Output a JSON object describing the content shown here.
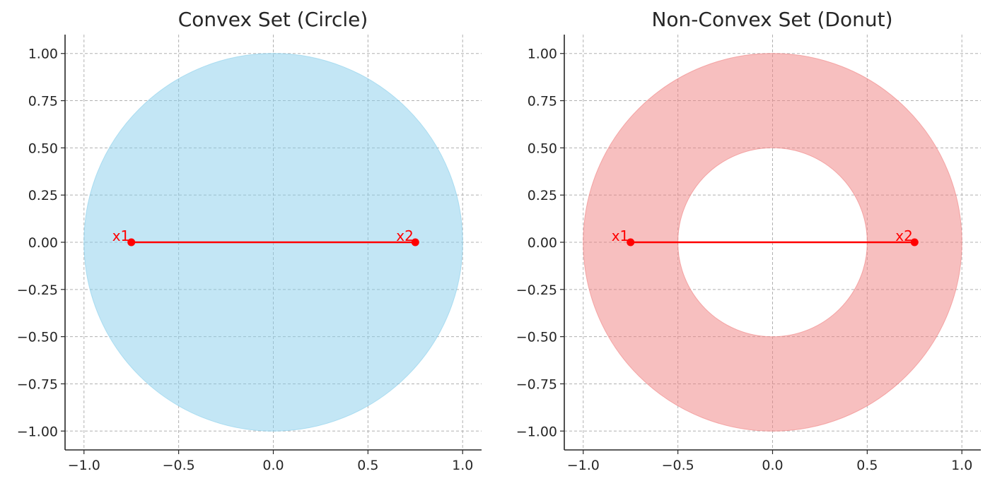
{
  "chart_data": [
    {
      "type": "area",
      "title": "Convex Set (Circle)",
      "shape": "circle",
      "outer_radius": 1.0,
      "inner_radius": 0,
      "center": [
        0,
        0
      ],
      "fill_color": "#87ceeb",
      "fill_opacity": 0.5,
      "xlim": [
        -1.1,
        1.1
      ],
      "ylim": [
        -1.1,
        1.1
      ],
      "x_ticks": [
        -1.0,
        -0.5,
        0.0,
        0.5,
        1.0
      ],
      "x_tick_labels": [
        "−1.0",
        "−0.5",
        "0.0",
        "0.5",
        "1.0"
      ],
      "y_ticks": [
        1.0,
        0.75,
        0.5,
        0.25,
        0.0,
        -0.25,
        -0.5,
        -0.75,
        -1.0
      ],
      "y_tick_labels": [
        "1.00",
        "0.75",
        "0.50",
        "0.25",
        "0.00",
        "−0.25",
        "−0.50",
        "−0.75",
        "−1.00"
      ],
      "grid": true,
      "segment": {
        "color": "#ff0000",
        "points": [
          {
            "label": "x1",
            "x": -0.75,
            "y": 0.0
          },
          {
            "label": "x2",
            "x": 0.75,
            "y": 0.0
          }
        ]
      }
    },
    {
      "type": "area",
      "title": "Non-Convex Set (Donut)",
      "shape": "annulus",
      "outer_radius": 1.0,
      "inner_radius": 0.5,
      "center": [
        0,
        0
      ],
      "fill_color": "#f08080",
      "fill_opacity": 0.5,
      "xlim": [
        -1.1,
        1.1
      ],
      "ylim": [
        -1.1,
        1.1
      ],
      "x_ticks": [
        -1.0,
        -0.5,
        0.0,
        0.5,
        1.0
      ],
      "x_tick_labels": [
        "−1.0",
        "−0.5",
        "0.0",
        "0.5",
        "1.0"
      ],
      "y_ticks": [
        1.0,
        0.75,
        0.5,
        0.25,
        0.0,
        -0.25,
        -0.5,
        -0.75,
        -1.0
      ],
      "y_tick_labels": [
        "1.00",
        "0.75",
        "0.50",
        "0.25",
        "0.00",
        "−0.25",
        "−0.50",
        "−0.75",
        "−1.00"
      ],
      "grid": true,
      "segment": {
        "color": "#ff0000",
        "points": [
          {
            "label": "x1",
            "x": -0.75,
            "y": 0.0
          },
          {
            "label": "x2",
            "x": 0.75,
            "y": 0.0
          }
        ]
      }
    }
  ]
}
